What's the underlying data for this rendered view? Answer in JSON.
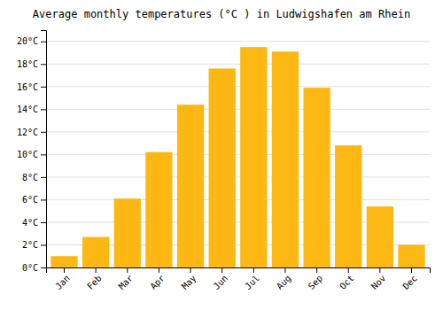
{
  "chart_data": {
    "type": "bar",
    "title": "Average monthly temperatures (°C ) in Ludwigshafen am Rhein",
    "categories": [
      "Jan",
      "Feb",
      "Mar",
      "Apr",
      "May",
      "Jun",
      "Jul",
      "Aug",
      "Sep",
      "Oct",
      "Nov",
      "Dec"
    ],
    "values": [
      1.0,
      2.7,
      6.1,
      10.2,
      14.4,
      17.6,
      19.5,
      19.1,
      15.9,
      10.8,
      5.4,
      2.0
    ],
    "color": "#FDB813",
    "ylim": [
      0,
      21
    ],
    "yticks": [
      {
        "value": 0,
        "label": "0°C"
      },
      {
        "value": 2,
        "label": "2°C"
      },
      {
        "value": 4,
        "label": "4°C"
      },
      {
        "value": 6,
        "label": "6°C"
      },
      {
        "value": 8,
        "label": "8°C"
      },
      {
        "value": 10,
        "label": "10°C"
      },
      {
        "value": 12,
        "label": "12°C"
      },
      {
        "value": 14,
        "label": "14°C"
      },
      {
        "value": 16,
        "label": "16°C"
      },
      {
        "value": 18,
        "label": "18°C"
      },
      {
        "value": 20,
        "label": "20°C"
      }
    ],
    "grid": true
  }
}
